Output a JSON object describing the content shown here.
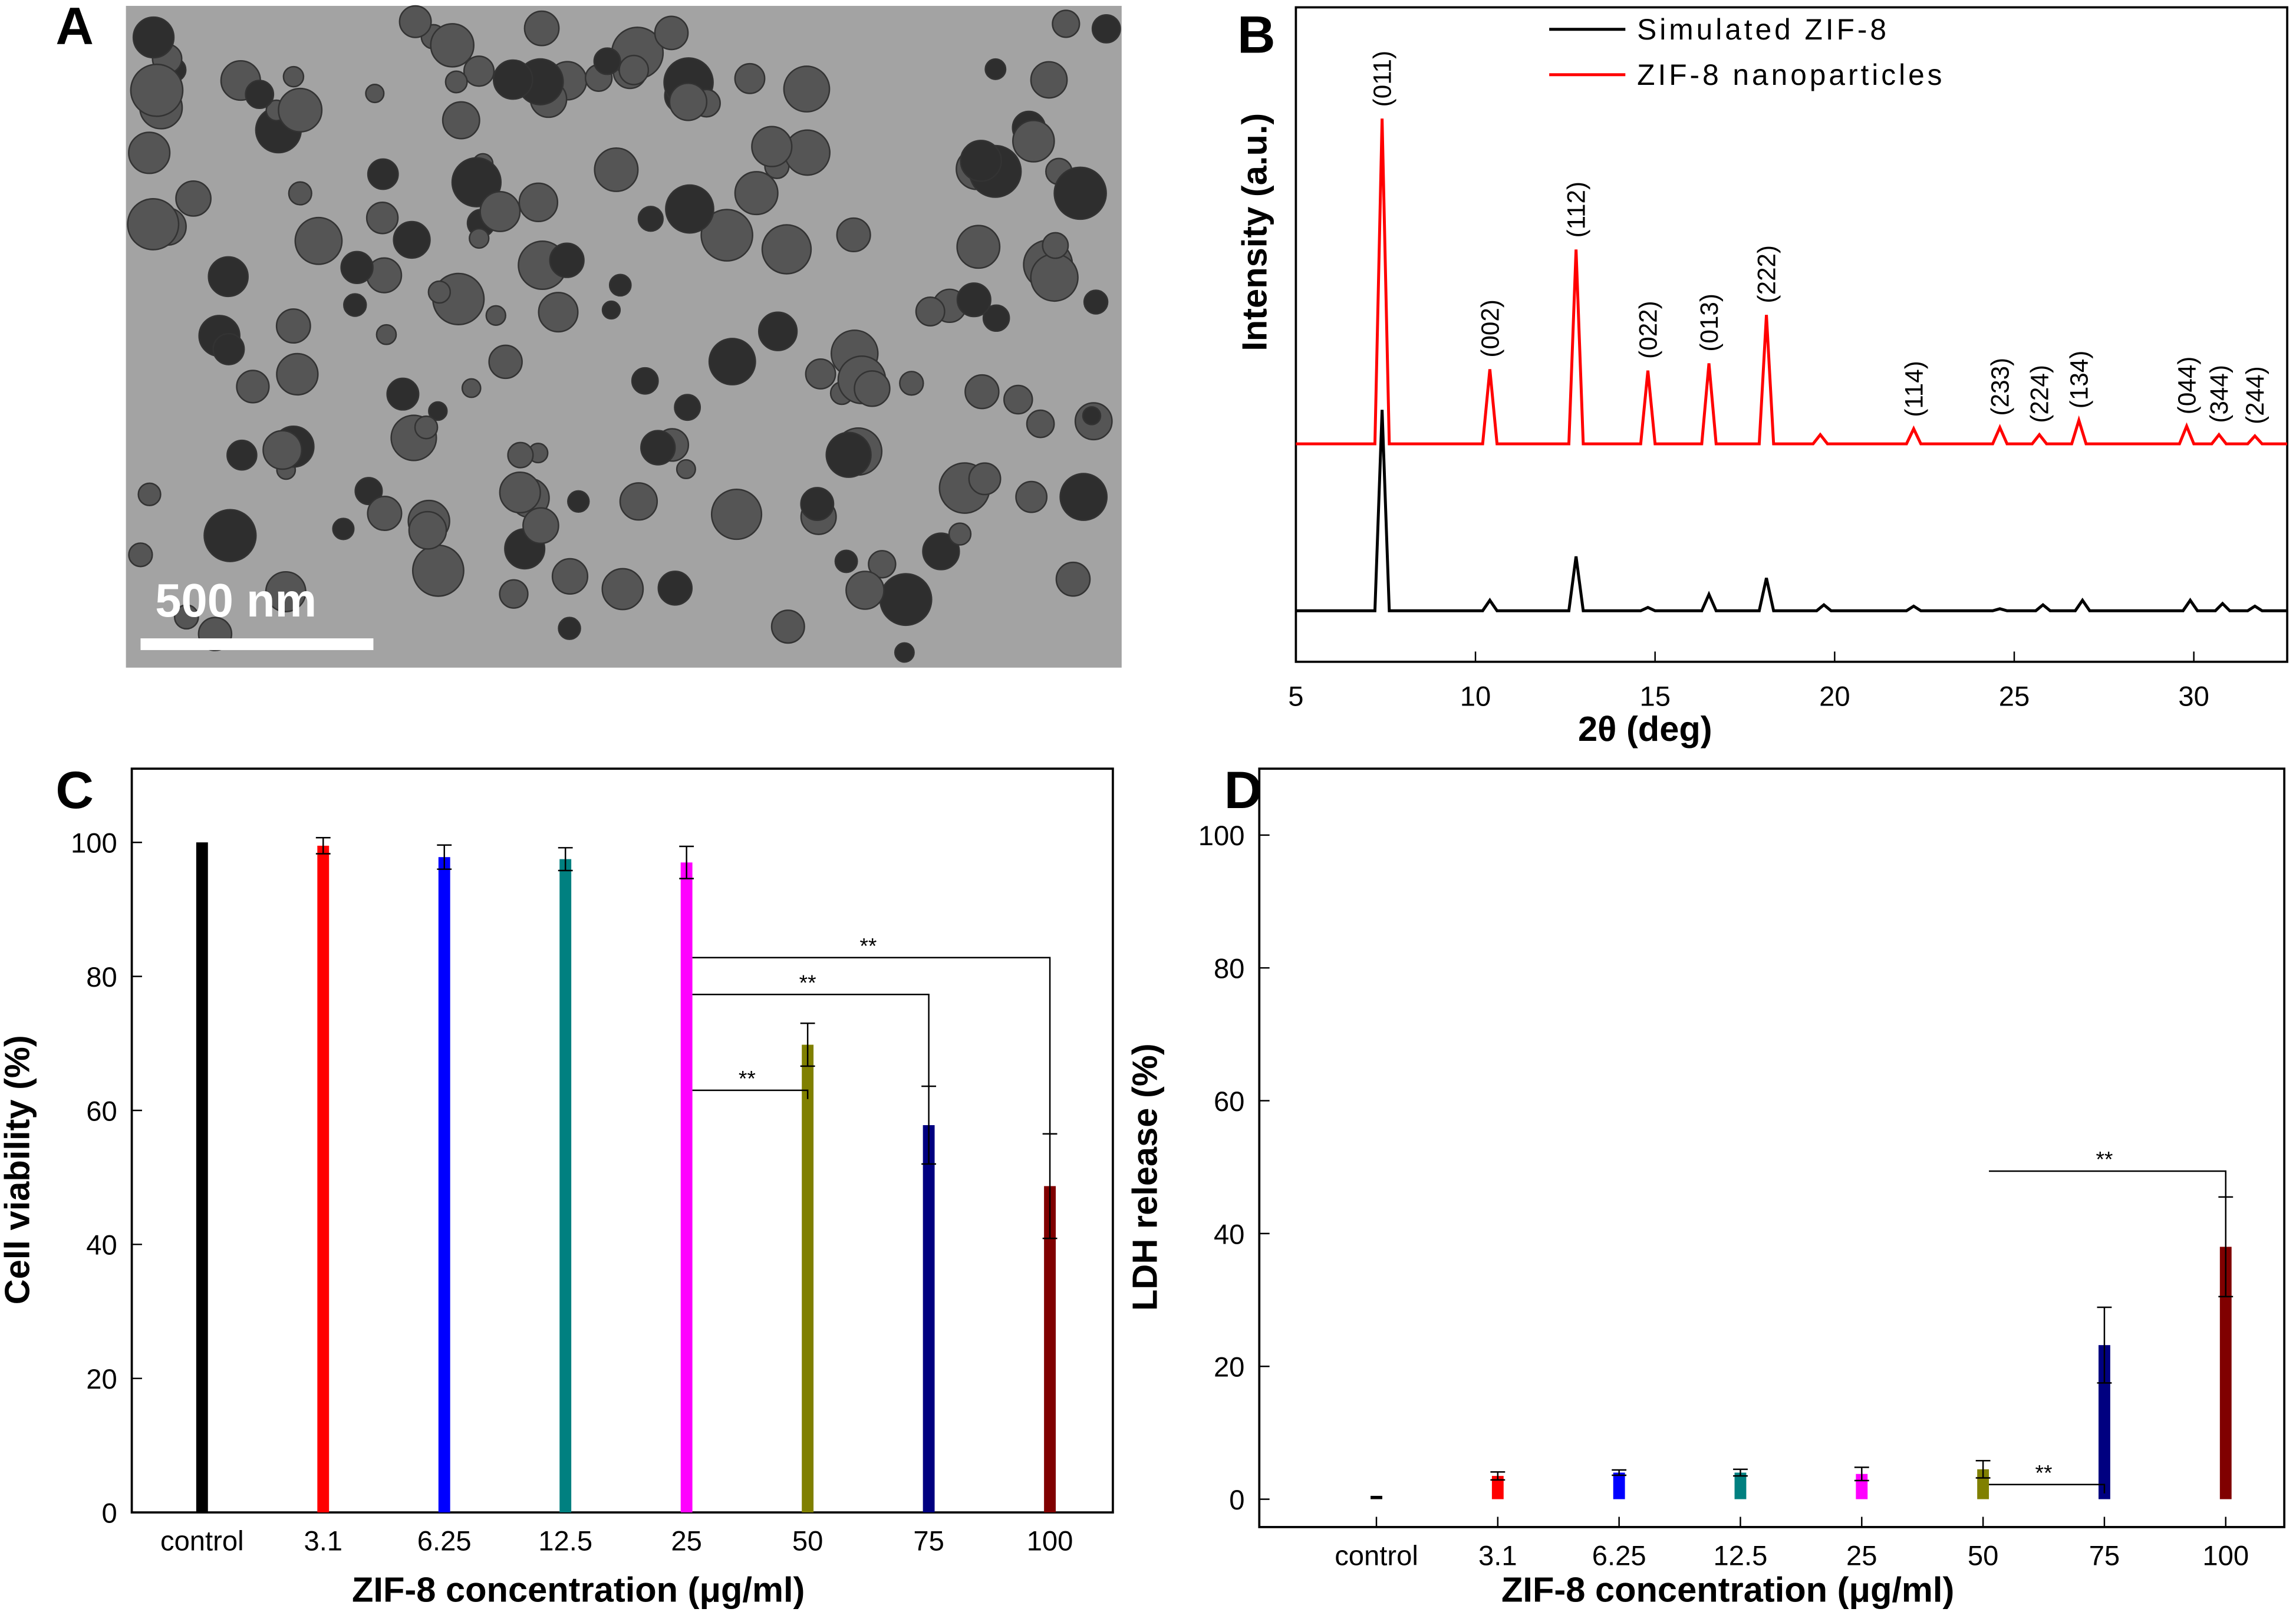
{
  "chart_data": [
    {
      "type": "image",
      "panel_label": "A",
      "scale_bar_label": "500 nm"
    },
    {
      "type": "line",
      "panel_label": "B",
      "x_label": "2θ (deg)",
      "y_label": "Intensity (a.u.)",
      "xlim": [
        5,
        32.6
      ],
      "xticks": [
        5,
        10,
        15,
        20,
        25,
        30
      ],
      "ylim": [
        0,
        100
      ],
      "series": [
        {
          "name": "Simulated ZIF-8",
          "color": "#000000",
          "x": [
            5,
            7.2,
            7.4,
            7.6,
            10.2,
            10.4,
            10.6,
            12.6,
            12.8,
            13.0,
            14.6,
            14.8,
            15.0,
            16.3,
            16.5,
            16.7,
            17.9,
            18.1,
            18.3,
            19.5,
            19.7,
            19.9,
            22.0,
            22.2,
            22.4,
            24.4,
            24.6,
            24.8,
            25.6,
            25.8,
            26.0,
            26.7,
            26.9,
            27.1,
            29.7,
            29.9,
            30.1,
            30.6,
            30.8,
            31.0,
            31.5,
            31.7,
            31.9,
            32.6
          ],
          "values": [
            7.8,
            7.8,
            38.5,
            7.8,
            7.8,
            9.4,
            7.8,
            7.8,
            16.1,
            7.8,
            7.8,
            8.3,
            7.8,
            7.8,
            10.3,
            7.8,
            7.8,
            12.8,
            7.8,
            7.8,
            8.7,
            7.8,
            7.8,
            8.5,
            7.8,
            7.8,
            8.1,
            7.8,
            7.8,
            8.7,
            7.8,
            7.8,
            9.4,
            7.8,
            7.8,
            9.4,
            7.8,
            7.8,
            8.9,
            7.8,
            7.8,
            8.5,
            7.8,
            7.8
          ]
        },
        {
          "name": "ZIF-8 nanoparticles",
          "color": "#ff0000",
          "x": [
            5,
            7.2,
            7.4,
            7.6,
            10.2,
            10.4,
            10.6,
            12.6,
            12.8,
            13.0,
            14.6,
            14.8,
            15.0,
            16.3,
            16.5,
            16.7,
            17.9,
            18.1,
            18.3,
            19.4,
            19.6,
            19.8,
            22.0,
            22.2,
            22.4,
            24.4,
            24.6,
            24.8,
            25.5,
            25.7,
            25.9,
            26.6,
            26.8,
            27.0,
            29.6,
            29.8,
            30.0,
            30.5,
            30.7,
            30.9,
            31.5,
            31.7,
            31.9,
            32.6
          ],
          "values": [
            33.3,
            33.3,
            83,
            33.3,
            33.3,
            44.7,
            33.3,
            33.3,
            63,
            33.3,
            33.3,
            44.5,
            33.3,
            33.3,
            45.6,
            33.3,
            33.3,
            53,
            33.3,
            33.3,
            34.7,
            33.3,
            33.3,
            35.6,
            33.3,
            33.3,
            35.8,
            33.3,
            33.3,
            34.7,
            33.3,
            33.3,
            36.9,
            33.3,
            33.3,
            36,
            33.3,
            33.3,
            34.7,
            33.3,
            33.3,
            34.5,
            33.3,
            33.3
          ]
        }
      ],
      "peak_labels": [
        {
          "text": "(011)",
          "x": 7.4
        },
        {
          "text": "(002)",
          "x": 10.4
        },
        {
          "text": "(112)",
          "x": 12.8
        },
        {
          "text": "(022)",
          "x": 14.8
        },
        {
          "text": "(013)",
          "x": 16.5
        },
        {
          "text": "(222)",
          "x": 18.1
        },
        {
          "text": "(114)",
          "x": 22.2
        },
        {
          "text": "(233)",
          "x": 24.6
        },
        {
          "text": "(224)",
          "x": 25.7
        },
        {
          "text": "(134)",
          "x": 26.8
        },
        {
          "text": "(044)",
          "x": 29.8
        },
        {
          "text": "(344)",
          "x": 30.7
        },
        {
          "text": "(244)",
          "x": 31.7
        }
      ]
    },
    {
      "type": "bar",
      "panel_label": "C",
      "x_label": "ZIF-8 concentration (μg/ml)",
      "y_label": "Cell viability (%)",
      "categories": [
        "control",
        "3.1",
        "6.25",
        "12.5",
        "25",
        "50",
        "75",
        "100"
      ],
      "values": [
        100,
        99.5,
        97.8,
        97.5,
        97,
        69.8,
        57.8,
        48.7
      ],
      "errors": [
        null,
        1.2,
        1.8,
        1.7,
        2.4,
        3.2,
        5.8,
        7.8
      ],
      "colors": [
        "#000000",
        "#ff0000",
        "#0000ff",
        "#008080",
        "#ff00ff",
        "#808000",
        "#000080",
        "#800000"
      ],
      "ylim": [
        0,
        111
      ],
      "yticks": [
        0,
        20,
        40,
        60,
        80,
        100
      ],
      "significance": [
        {
          "label": "**",
          "from": 4,
          "to": 5,
          "y": 63
        },
        {
          "label": "**",
          "from": 4,
          "to": 6,
          "y": 77.3
        },
        {
          "label": "**",
          "from": 4,
          "to": 7,
          "y": 82.8
        }
      ]
    },
    {
      "type": "bar",
      "panel_label": "D",
      "x_label": "ZIF-8 concentration (μg/ml)",
      "y_label": "LDH release (%)",
      "categories": [
        "control",
        "3.1",
        "6.25",
        "12.5",
        "25",
        "50",
        "75",
        "100"
      ],
      "values": [
        0.5,
        3.5,
        4,
        4,
        3.8,
        4.5,
        23.2,
        38
      ],
      "errors": [
        null,
        0.6,
        0.4,
        0.5,
        1,
        1.3,
        5.7,
        7.5
      ],
      "colors": [
        "#000000",
        "#ff0000",
        "#0000ff",
        "#008080",
        "#ff00ff",
        "#808000",
        "#000080",
        "#800000"
      ],
      "ylim": [
        -4.2,
        110
      ],
      "yticks": [
        0,
        20,
        40,
        60,
        80,
        100
      ],
      "significance": [
        {
          "label": "**",
          "from": 5,
          "to": 7,
          "y": 49.4
        },
        {
          "label": "**",
          "from": 5,
          "to": 6,
          "y": 2.2
        }
      ]
    }
  ]
}
